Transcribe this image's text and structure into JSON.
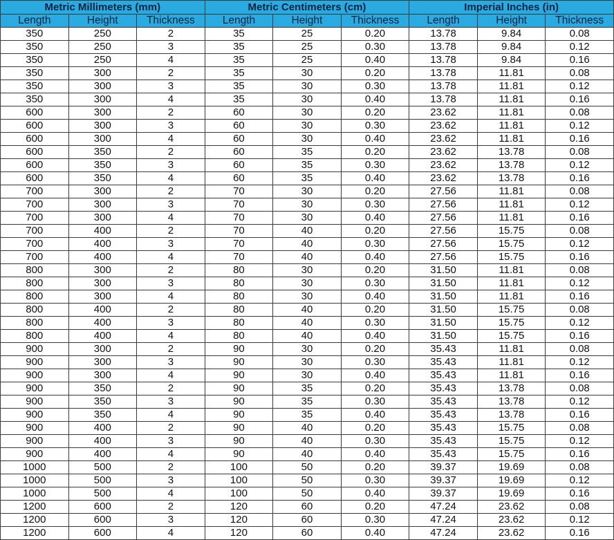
{
  "groups": [
    "Metric Millimeters (mm)",
    "Metric Centimeters (cm)",
    "Imperial Inches (in)"
  ],
  "columns": [
    "Length",
    "Height",
    "Thickness",
    "Length",
    "Height",
    "Thickness",
    "Length",
    "Height",
    "Thickness"
  ],
  "colors": {
    "header_bg": "#29aae1",
    "header_text": "#13223f",
    "border": "#3a3a3a"
  },
  "rows": [
    [
      "350",
      "250",
      "2",
      "35",
      "25",
      "0.20",
      "13.78",
      "9.84",
      "0.08"
    ],
    [
      "350",
      "250",
      "3",
      "35",
      "25",
      "0.30",
      "13.78",
      "9.84",
      "0.12"
    ],
    [
      "350",
      "250",
      "4",
      "35",
      "25",
      "0.40",
      "13.78",
      "9.84",
      "0.16"
    ],
    [
      "350",
      "300",
      "2",
      "35",
      "30",
      "0.20",
      "13.78",
      "11.81",
      "0.08"
    ],
    [
      "350",
      "300",
      "3",
      "35",
      "30",
      "0.30",
      "13.78",
      "11.81",
      "0.12"
    ],
    [
      "350",
      "300",
      "4",
      "35",
      "30",
      "0.40",
      "13.78",
      "11.81",
      "0.16"
    ],
    [
      "600",
      "300",
      "2",
      "60",
      "30",
      "0.20",
      "23.62",
      "11.81",
      "0.08"
    ],
    [
      "600",
      "300",
      "3",
      "60",
      "30",
      "0.30",
      "23.62",
      "11.81",
      "0.12"
    ],
    [
      "600",
      "300",
      "4",
      "60",
      "30",
      "0.40",
      "23.62",
      "11.81",
      "0.16"
    ],
    [
      "600",
      "350",
      "2",
      "60",
      "35",
      "0.20",
      "23.62",
      "13.78",
      "0.08"
    ],
    [
      "600",
      "350",
      "3",
      "60",
      "35",
      "0.30",
      "23.62",
      "13.78",
      "0.12"
    ],
    [
      "600",
      "350",
      "4",
      "60",
      "35",
      "0.40",
      "23.62",
      "13.78",
      "0.16"
    ],
    [
      "700",
      "300",
      "2",
      "70",
      "30",
      "0.20",
      "27.56",
      "11.81",
      "0.08"
    ],
    [
      "700",
      "300",
      "3",
      "70",
      "30",
      "0.30",
      "27.56",
      "11.81",
      "0.12"
    ],
    [
      "700",
      "300",
      "4",
      "70",
      "30",
      "0.40",
      "27.56",
      "11.81",
      "0.16"
    ],
    [
      "700",
      "400",
      "2",
      "70",
      "40",
      "0.20",
      "27.56",
      "15.75",
      "0.08"
    ],
    [
      "700",
      "400",
      "3",
      "70",
      "40",
      "0.30",
      "27.56",
      "15.75",
      "0.12"
    ],
    [
      "700",
      "400",
      "4",
      "70",
      "40",
      "0.40",
      "27.56",
      "15.75",
      "0.16"
    ],
    [
      "800",
      "300",
      "2",
      "80",
      "30",
      "0.20",
      "31.50",
      "11.81",
      "0.08"
    ],
    [
      "800",
      "300",
      "3",
      "80",
      "30",
      "0.30",
      "31.50",
      "11.81",
      "0.12"
    ],
    [
      "800",
      "300",
      "4",
      "80",
      "30",
      "0.40",
      "31.50",
      "11.81",
      "0.16"
    ],
    [
      "800",
      "400",
      "2",
      "80",
      "40",
      "0.20",
      "31.50",
      "15.75",
      "0.08"
    ],
    [
      "800",
      "400",
      "3",
      "80",
      "40",
      "0.30",
      "31.50",
      "15.75",
      "0.12"
    ],
    [
      "800",
      "400",
      "4",
      "80",
      "40",
      "0.40",
      "31.50",
      "15.75",
      "0.16"
    ],
    [
      "900",
      "300",
      "2",
      "90",
      "30",
      "0.20",
      "35.43",
      "11.81",
      "0.08"
    ],
    [
      "900",
      "300",
      "3",
      "90",
      "30",
      "0.30",
      "35.43",
      "11.81",
      "0.12"
    ],
    [
      "900",
      "300",
      "4",
      "90",
      "30",
      "0.40",
      "35.43",
      "11.81",
      "0.16"
    ],
    [
      "900",
      "350",
      "2",
      "90",
      "35",
      "0.20",
      "35.43",
      "13.78",
      "0.08"
    ],
    [
      "900",
      "350",
      "3",
      "90",
      "35",
      "0.30",
      "35.43",
      "13.78",
      "0.12"
    ],
    [
      "900",
      "350",
      "4",
      "90",
      "35",
      "0.40",
      "35.43",
      "13.78",
      "0.16"
    ],
    [
      "900",
      "400",
      "2",
      "90",
      "40",
      "0.20",
      "35.43",
      "15.75",
      "0.08"
    ],
    [
      "900",
      "400",
      "3",
      "90",
      "40",
      "0.30",
      "35.43",
      "15.75",
      "0.12"
    ],
    [
      "900",
      "400",
      "4",
      "90",
      "40",
      "0.40",
      "35.43",
      "15.75",
      "0.16"
    ],
    [
      "1000",
      "500",
      "2",
      "100",
      "50",
      "0.20",
      "39.37",
      "19.69",
      "0.08"
    ],
    [
      "1000",
      "500",
      "3",
      "100",
      "50",
      "0.30",
      "39.37",
      "19.69",
      "0.12"
    ],
    [
      "1000",
      "500",
      "4",
      "100",
      "50",
      "0.40",
      "39.37",
      "19.69",
      "0.16"
    ],
    [
      "1200",
      "600",
      "2",
      "120",
      "60",
      "0.20",
      "47.24",
      "23.62",
      "0.08"
    ],
    [
      "1200",
      "600",
      "3",
      "120",
      "60",
      "0.30",
      "47.24",
      "23.62",
      "0.12"
    ],
    [
      "1200",
      "600",
      "4",
      "120",
      "60",
      "0.40",
      "47.24",
      "23.62",
      "0.16"
    ]
  ]
}
